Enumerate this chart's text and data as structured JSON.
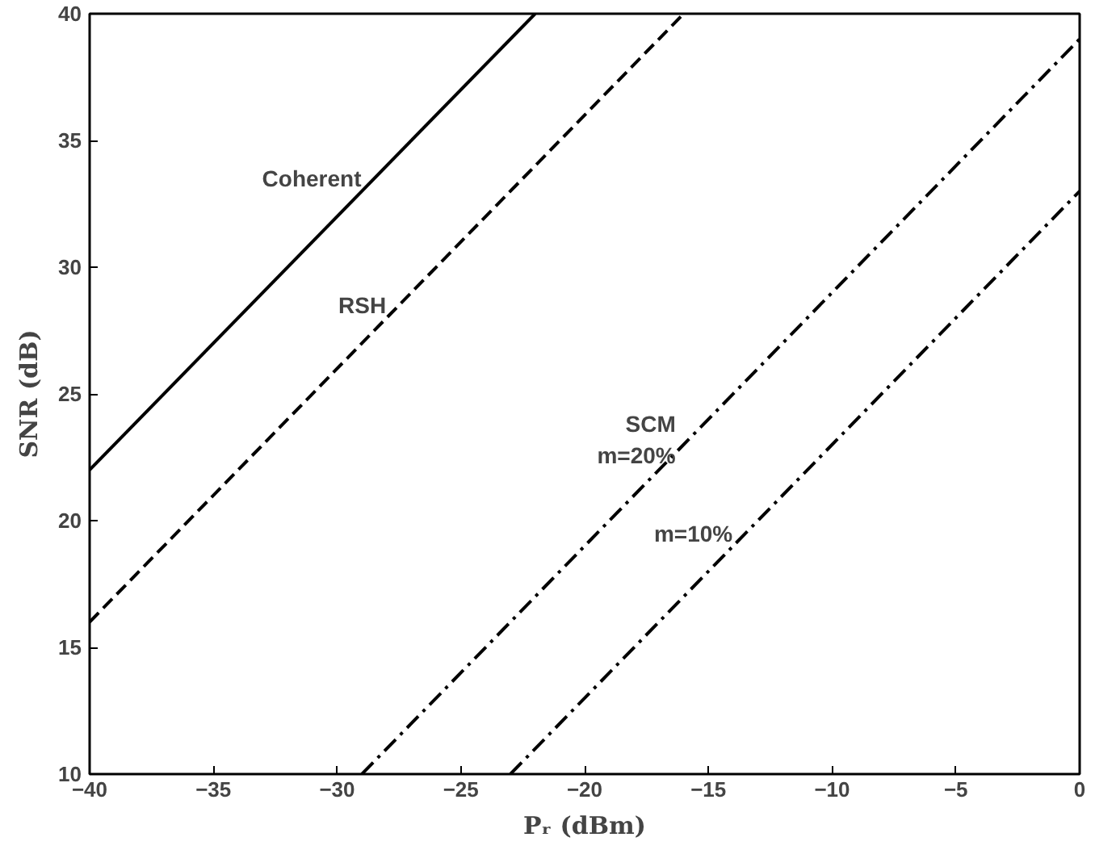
{
  "chart_data": {
    "type": "line",
    "xlabel": "Pᵣ (dBm)",
    "ylabel": "SNR (dB)",
    "series": [
      {
        "color": "#000000",
        "line_style": "solid",
        "x": [
          -40,
          -22
        ],
        "values": [
          22,
          40
        ]
      },
      {
        "color": "#000000",
        "line_style": "dashed",
        "x": [
          -40,
          -16
        ],
        "values": [
          16,
          40
        ]
      },
      {
        "color": "#000000",
        "line_style": "dashdot",
        "x": [
          -29,
          0
        ],
        "values": [
          10,
          39
        ]
      },
      {
        "color": "#000000",
        "line_style": "dashdot",
        "x": [
          -23,
          0
        ],
        "values": [
          10,
          33
        ]
      }
    ],
    "annotations": [
      {
        "text": "Coherent",
        "x": -28.5,
        "y": 33.5
      },
      {
        "text": "RSH",
        "x": -27.5,
        "y": 28.5
      },
      {
        "text": "SCM\nm=20%",
        "x": -15.8,
        "y": 23.2
      },
      {
        "text": "m=10%",
        "x": -13.5,
        "y": 19.5
      }
    ],
    "xlim": [
      -40,
      0
    ],
    "ylim": [
      10,
      40
    ],
    "xticks": [
      -40,
      -35,
      -30,
      -25,
      -20,
      -15,
      -10,
      -5,
      0
    ],
    "yticks": [
      10,
      15,
      20,
      25,
      30,
      35,
      40
    ],
    "grid": false,
    "marker": "none"
  }
}
